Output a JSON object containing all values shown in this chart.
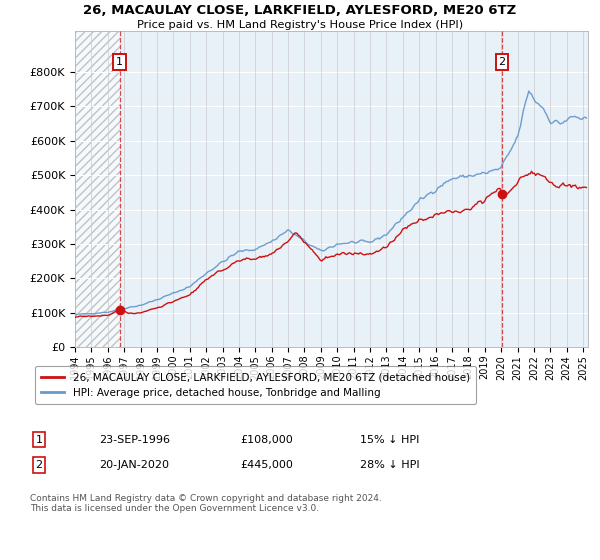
{
  "title": "26, MACAULAY CLOSE, LARKFIELD, AYLESFORD, ME20 6TZ",
  "subtitle": "Price paid vs. HM Land Registry's House Price Index (HPI)",
  "xlim_start": 1994.0,
  "xlim_end": 2025.3,
  "ylim_min": 0,
  "ylim_max": 920000,
  "yticks": [
    0,
    100000,
    200000,
    300000,
    400000,
    500000,
    600000,
    700000,
    800000
  ],
  "ytick_labels": [
    "£0",
    "£100K",
    "£200K",
    "£300K",
    "£400K",
    "£500K",
    "£600K",
    "£700K",
    "£800K"
  ],
  "xticks": [
    1994,
    1995,
    1996,
    1997,
    1998,
    1999,
    2000,
    2001,
    2002,
    2003,
    2004,
    2005,
    2006,
    2007,
    2008,
    2009,
    2010,
    2011,
    2012,
    2013,
    2014,
    2015,
    2016,
    2017,
    2018,
    2019,
    2020,
    2021,
    2022,
    2023,
    2024,
    2025
  ],
  "transaction1_date": 1996.73,
  "transaction1_price": 108000,
  "transaction2_date": 2020.05,
  "transaction2_price": 445000,
  "hpi_color": "#6699cc",
  "price_color": "#cc1111",
  "legend_label_price": "26, MACAULAY CLOSE, LARKFIELD, AYLESFORD, ME20 6TZ (detached house)",
  "legend_label_hpi": "HPI: Average price, detached house, Tonbridge and Malling",
  "footnote": "Contains HM Land Registry data © Crown copyright and database right 2024.\nThis data is licensed under the Open Government Licence v3.0.",
  "background_hatch_end": 1996.73,
  "plot_bg_color": "#e8f0f8",
  "hatch_bg_color": "#e0e0e8"
}
